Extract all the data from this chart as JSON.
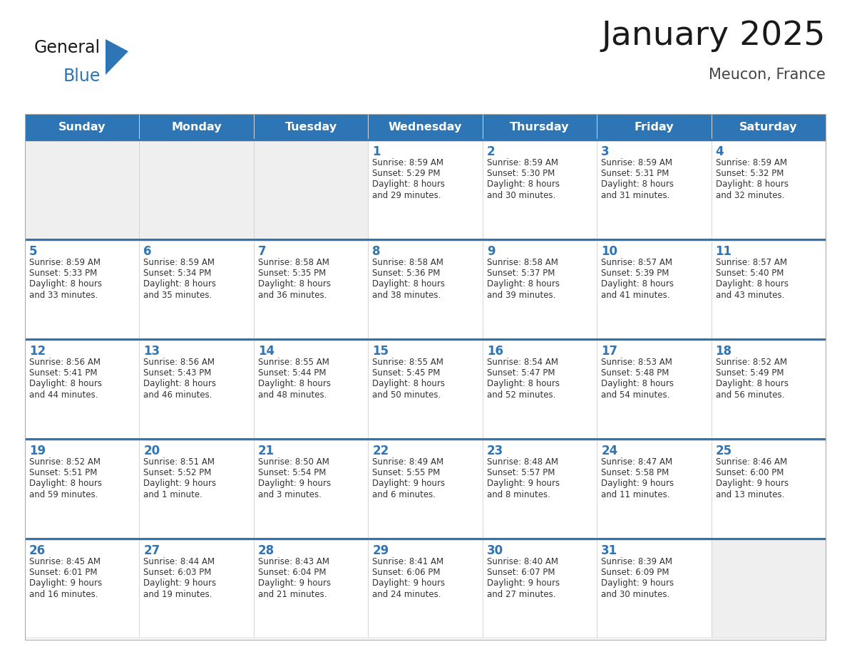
{
  "title": "January 2025",
  "subtitle": "Meucon, France",
  "header_color": "#2E75B6",
  "header_text_color": "#FFFFFF",
  "cell_bg_color": "#FFFFFF",
  "cell_bg_empty": "#EFEFEF",
  "cell_border_color": "#CCCCCC",
  "row_sep_color": "#2E75B6",
  "day_number_color": "#2E75B6",
  "text_color": "#333333",
  "days_of_week": [
    "Sunday",
    "Monday",
    "Tuesday",
    "Wednesday",
    "Thursday",
    "Friday",
    "Saturday"
  ],
  "calendar_data": [
    [
      {
        "day": "",
        "sunrise": "",
        "sunset": "",
        "daylight": ""
      },
      {
        "day": "",
        "sunrise": "",
        "sunset": "",
        "daylight": ""
      },
      {
        "day": "",
        "sunrise": "",
        "sunset": "",
        "daylight": ""
      },
      {
        "day": "1",
        "sunrise": "8:59 AM",
        "sunset": "5:29 PM",
        "daylight": "8 hours\nand 29 minutes."
      },
      {
        "day": "2",
        "sunrise": "8:59 AM",
        "sunset": "5:30 PM",
        "daylight": "8 hours\nand 30 minutes."
      },
      {
        "day": "3",
        "sunrise": "8:59 AM",
        "sunset": "5:31 PM",
        "daylight": "8 hours\nand 31 minutes."
      },
      {
        "day": "4",
        "sunrise": "8:59 AM",
        "sunset": "5:32 PM",
        "daylight": "8 hours\nand 32 minutes."
      }
    ],
    [
      {
        "day": "5",
        "sunrise": "8:59 AM",
        "sunset": "5:33 PM",
        "daylight": "8 hours\nand 33 minutes."
      },
      {
        "day": "6",
        "sunrise": "8:59 AM",
        "sunset": "5:34 PM",
        "daylight": "8 hours\nand 35 minutes."
      },
      {
        "day": "7",
        "sunrise": "8:58 AM",
        "sunset": "5:35 PM",
        "daylight": "8 hours\nand 36 minutes."
      },
      {
        "day": "8",
        "sunrise": "8:58 AM",
        "sunset": "5:36 PM",
        "daylight": "8 hours\nand 38 minutes."
      },
      {
        "day": "9",
        "sunrise": "8:58 AM",
        "sunset": "5:37 PM",
        "daylight": "8 hours\nand 39 minutes."
      },
      {
        "day": "10",
        "sunrise": "8:57 AM",
        "sunset": "5:39 PM",
        "daylight": "8 hours\nand 41 minutes."
      },
      {
        "day": "11",
        "sunrise": "8:57 AM",
        "sunset": "5:40 PM",
        "daylight": "8 hours\nand 43 minutes."
      }
    ],
    [
      {
        "day": "12",
        "sunrise": "8:56 AM",
        "sunset": "5:41 PM",
        "daylight": "8 hours\nand 44 minutes."
      },
      {
        "day": "13",
        "sunrise": "8:56 AM",
        "sunset": "5:43 PM",
        "daylight": "8 hours\nand 46 minutes."
      },
      {
        "day": "14",
        "sunrise": "8:55 AM",
        "sunset": "5:44 PM",
        "daylight": "8 hours\nand 48 minutes."
      },
      {
        "day": "15",
        "sunrise": "8:55 AM",
        "sunset": "5:45 PM",
        "daylight": "8 hours\nand 50 minutes."
      },
      {
        "day": "16",
        "sunrise": "8:54 AM",
        "sunset": "5:47 PM",
        "daylight": "8 hours\nand 52 minutes."
      },
      {
        "day": "17",
        "sunrise": "8:53 AM",
        "sunset": "5:48 PM",
        "daylight": "8 hours\nand 54 minutes."
      },
      {
        "day": "18",
        "sunrise": "8:52 AM",
        "sunset": "5:49 PM",
        "daylight": "8 hours\nand 56 minutes."
      }
    ],
    [
      {
        "day": "19",
        "sunrise": "8:52 AM",
        "sunset": "5:51 PM",
        "daylight": "8 hours\nand 59 minutes."
      },
      {
        "day": "20",
        "sunrise": "8:51 AM",
        "sunset": "5:52 PM",
        "daylight": "9 hours\nand 1 minute."
      },
      {
        "day": "21",
        "sunrise": "8:50 AM",
        "sunset": "5:54 PM",
        "daylight": "9 hours\nand 3 minutes."
      },
      {
        "day": "22",
        "sunrise": "8:49 AM",
        "sunset": "5:55 PM",
        "daylight": "9 hours\nand 6 minutes."
      },
      {
        "day": "23",
        "sunrise": "8:48 AM",
        "sunset": "5:57 PM",
        "daylight": "9 hours\nand 8 minutes."
      },
      {
        "day": "24",
        "sunrise": "8:47 AM",
        "sunset": "5:58 PM",
        "daylight": "9 hours\nand 11 minutes."
      },
      {
        "day": "25",
        "sunrise": "8:46 AM",
        "sunset": "6:00 PM",
        "daylight": "9 hours\nand 13 minutes."
      }
    ],
    [
      {
        "day": "26",
        "sunrise": "8:45 AM",
        "sunset": "6:01 PM",
        "daylight": "9 hours\nand 16 minutes."
      },
      {
        "day": "27",
        "sunrise": "8:44 AM",
        "sunset": "6:03 PM",
        "daylight": "9 hours\nand 19 minutes."
      },
      {
        "day": "28",
        "sunrise": "8:43 AM",
        "sunset": "6:04 PM",
        "daylight": "9 hours\nand 21 minutes."
      },
      {
        "day": "29",
        "sunrise": "8:41 AM",
        "sunset": "6:06 PM",
        "daylight": "9 hours\nand 24 minutes."
      },
      {
        "day": "30",
        "sunrise": "8:40 AM",
        "sunset": "6:07 PM",
        "daylight": "9 hours\nand 27 minutes."
      },
      {
        "day": "31",
        "sunrise": "8:39 AM",
        "sunset": "6:09 PM",
        "daylight": "9 hours\nand 30 minutes."
      },
      {
        "day": "",
        "sunrise": "",
        "sunset": "",
        "daylight": ""
      }
    ]
  ],
  "fig_width": 11.88,
  "fig_height": 9.18,
  "dpi": 100
}
